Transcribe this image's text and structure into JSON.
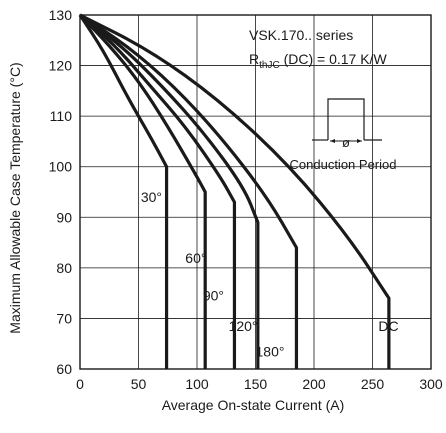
{
  "chart_data": {
    "type": "line",
    "title": "VSK.170.. series",
    "annotation": {
      "r_main": "R",
      "r_sub": "thJC",
      "r_rest": " (DC) = 0.17 K/W",
      "phi": "ø",
      "conduction_label": "Conduction Period"
    },
    "xlabel": "Average On-state Current (A)",
    "ylabel": "Maximum Allowable Case Temperature (°C)",
    "xlim": [
      0,
      300
    ],
    "ylim": [
      60,
      130
    ],
    "xticks": [
      0,
      50,
      100,
      150,
      200,
      250,
      300
    ],
    "yticks": [
      60,
      70,
      80,
      90,
      100,
      110,
      120,
      130
    ],
    "grid": true,
    "series": [
      {
        "name": "30°",
        "x": [
          0,
          20,
          40,
          60,
          74,
          74
        ],
        "y": [
          130,
          123,
          114,
          106,
          100,
          60
        ]
      },
      {
        "name": "60°",
        "x": [
          0,
          25,
          50,
          75,
          100,
          107,
          107
        ],
        "y": [
          130,
          124,
          117,
          108,
          98,
          95,
          60
        ]
      },
      {
        "name": "90°",
        "x": [
          0,
          30,
          60,
          90,
          120,
          132,
          132
        ],
        "y": [
          130,
          124,
          116,
          108,
          98,
          93,
          60
        ]
      },
      {
        "name": "120°",
        "x": [
          0,
          35,
          70,
          105,
          140,
          152,
          152
        ],
        "y": [
          130,
          124,
          116,
          107,
          96,
          89,
          60
        ]
      },
      {
        "name": "180°",
        "x": [
          0,
          40,
          80,
          120,
          160,
          185,
          185
        ],
        "y": [
          130,
          124,
          116,
          106,
          94,
          84,
          60
        ]
      },
      {
        "name": "DC",
        "x": [
          0,
          60,
          120,
          180,
          230,
          264,
          264
        ],
        "y": [
          130,
          123,
          113,
          100,
          86,
          74,
          60
        ]
      }
    ]
  }
}
